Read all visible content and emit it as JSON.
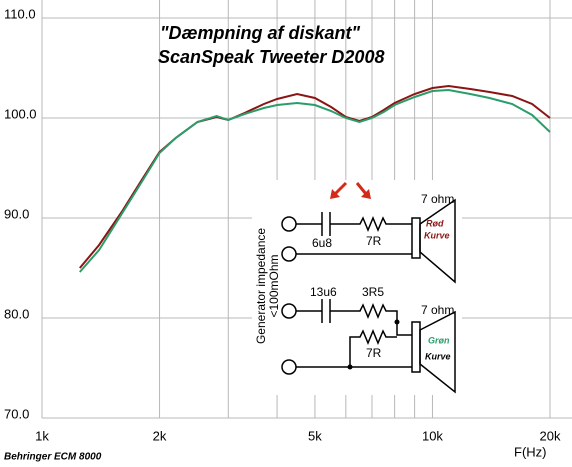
{
  "chart_data": {
    "type": "line",
    "title": "\"Dæmpning af diskant\"",
    "subtitle": "ScanSpeak Tweeter D2008",
    "x_label": "F(Hz)",
    "footnote": "Behringer ECM 8000",
    "x_log": true,
    "grid": true,
    "xlim": [
      1000,
      20000
    ],
    "ylim": [
      70,
      110
    ],
    "xticks": [
      {
        "value": 1000,
        "label": "1k"
      },
      {
        "value": 2000,
        "label": "2k"
      },
      {
        "value": 5000,
        "label": "5k"
      },
      {
        "value": 10000,
        "label": "10k"
      },
      {
        "value": 20000,
        "label": "20k"
      }
    ],
    "x_minor_grid": [
      3000,
      4000,
      6000,
      7000,
      8000,
      9000
    ],
    "yticks": [
      {
        "value": 70,
        "label": "70.0"
      },
      {
        "value": 80,
        "label": "80.0"
      },
      {
        "value": 90,
        "label": "90.0"
      },
      {
        "value": 100,
        "label": "100.0"
      },
      {
        "value": 110,
        "label": "110.0"
      }
    ],
    "x": [
      1250,
      1400,
      1600,
      1800,
      2000,
      2200,
      2500,
      2800,
      3000,
      3300,
      3700,
      4000,
      4500,
      5000,
      5500,
      6000,
      6500,
      7000,
      7500,
      8000,
      9000,
      10000,
      11000,
      12500,
      14000,
      16000,
      18000,
      20000
    ],
    "series": [
      {
        "color": "#8b1414",
        "values": [
          85.0,
          87.3,
          90.6,
          93.8,
          96.6,
          98.0,
          99.6,
          100.1,
          99.8,
          100.5,
          101.4,
          101.9,
          102.4,
          102.0,
          101.1,
          100.1,
          99.7,
          100.1,
          100.8,
          101.5,
          102.4,
          103.0,
          103.2,
          102.9,
          102.6,
          102.2,
          101.4,
          100.0
        ]
      },
      {
        "color": "#2a9d6a",
        "values": [
          84.6,
          86.8,
          90.4,
          93.6,
          96.5,
          98.0,
          99.6,
          100.2,
          99.8,
          100.4,
          101.0,
          101.3,
          101.5,
          101.3,
          100.7,
          100.0,
          99.6,
          100.0,
          100.6,
          101.3,
          102.1,
          102.7,
          102.8,
          102.4,
          102.0,
          101.4,
          100.3,
          98.6
        ]
      }
    ]
  },
  "schematic": {
    "generator_label": "Generator impedance",
    "generator_impedance": "<100mOhm",
    "top": {
      "capacitor": "6u8",
      "resistor": "7R",
      "speaker": "7 ohm",
      "curve_1": "Rød",
      "curve_2": "Kurve"
    },
    "bottom": {
      "capacitor": "13u6",
      "resistor_series": "3R5",
      "resistor_parallel": "7R",
      "speaker": "7 ohm",
      "curve_1": "Grøn",
      "curve_2": "Kurve"
    }
  }
}
